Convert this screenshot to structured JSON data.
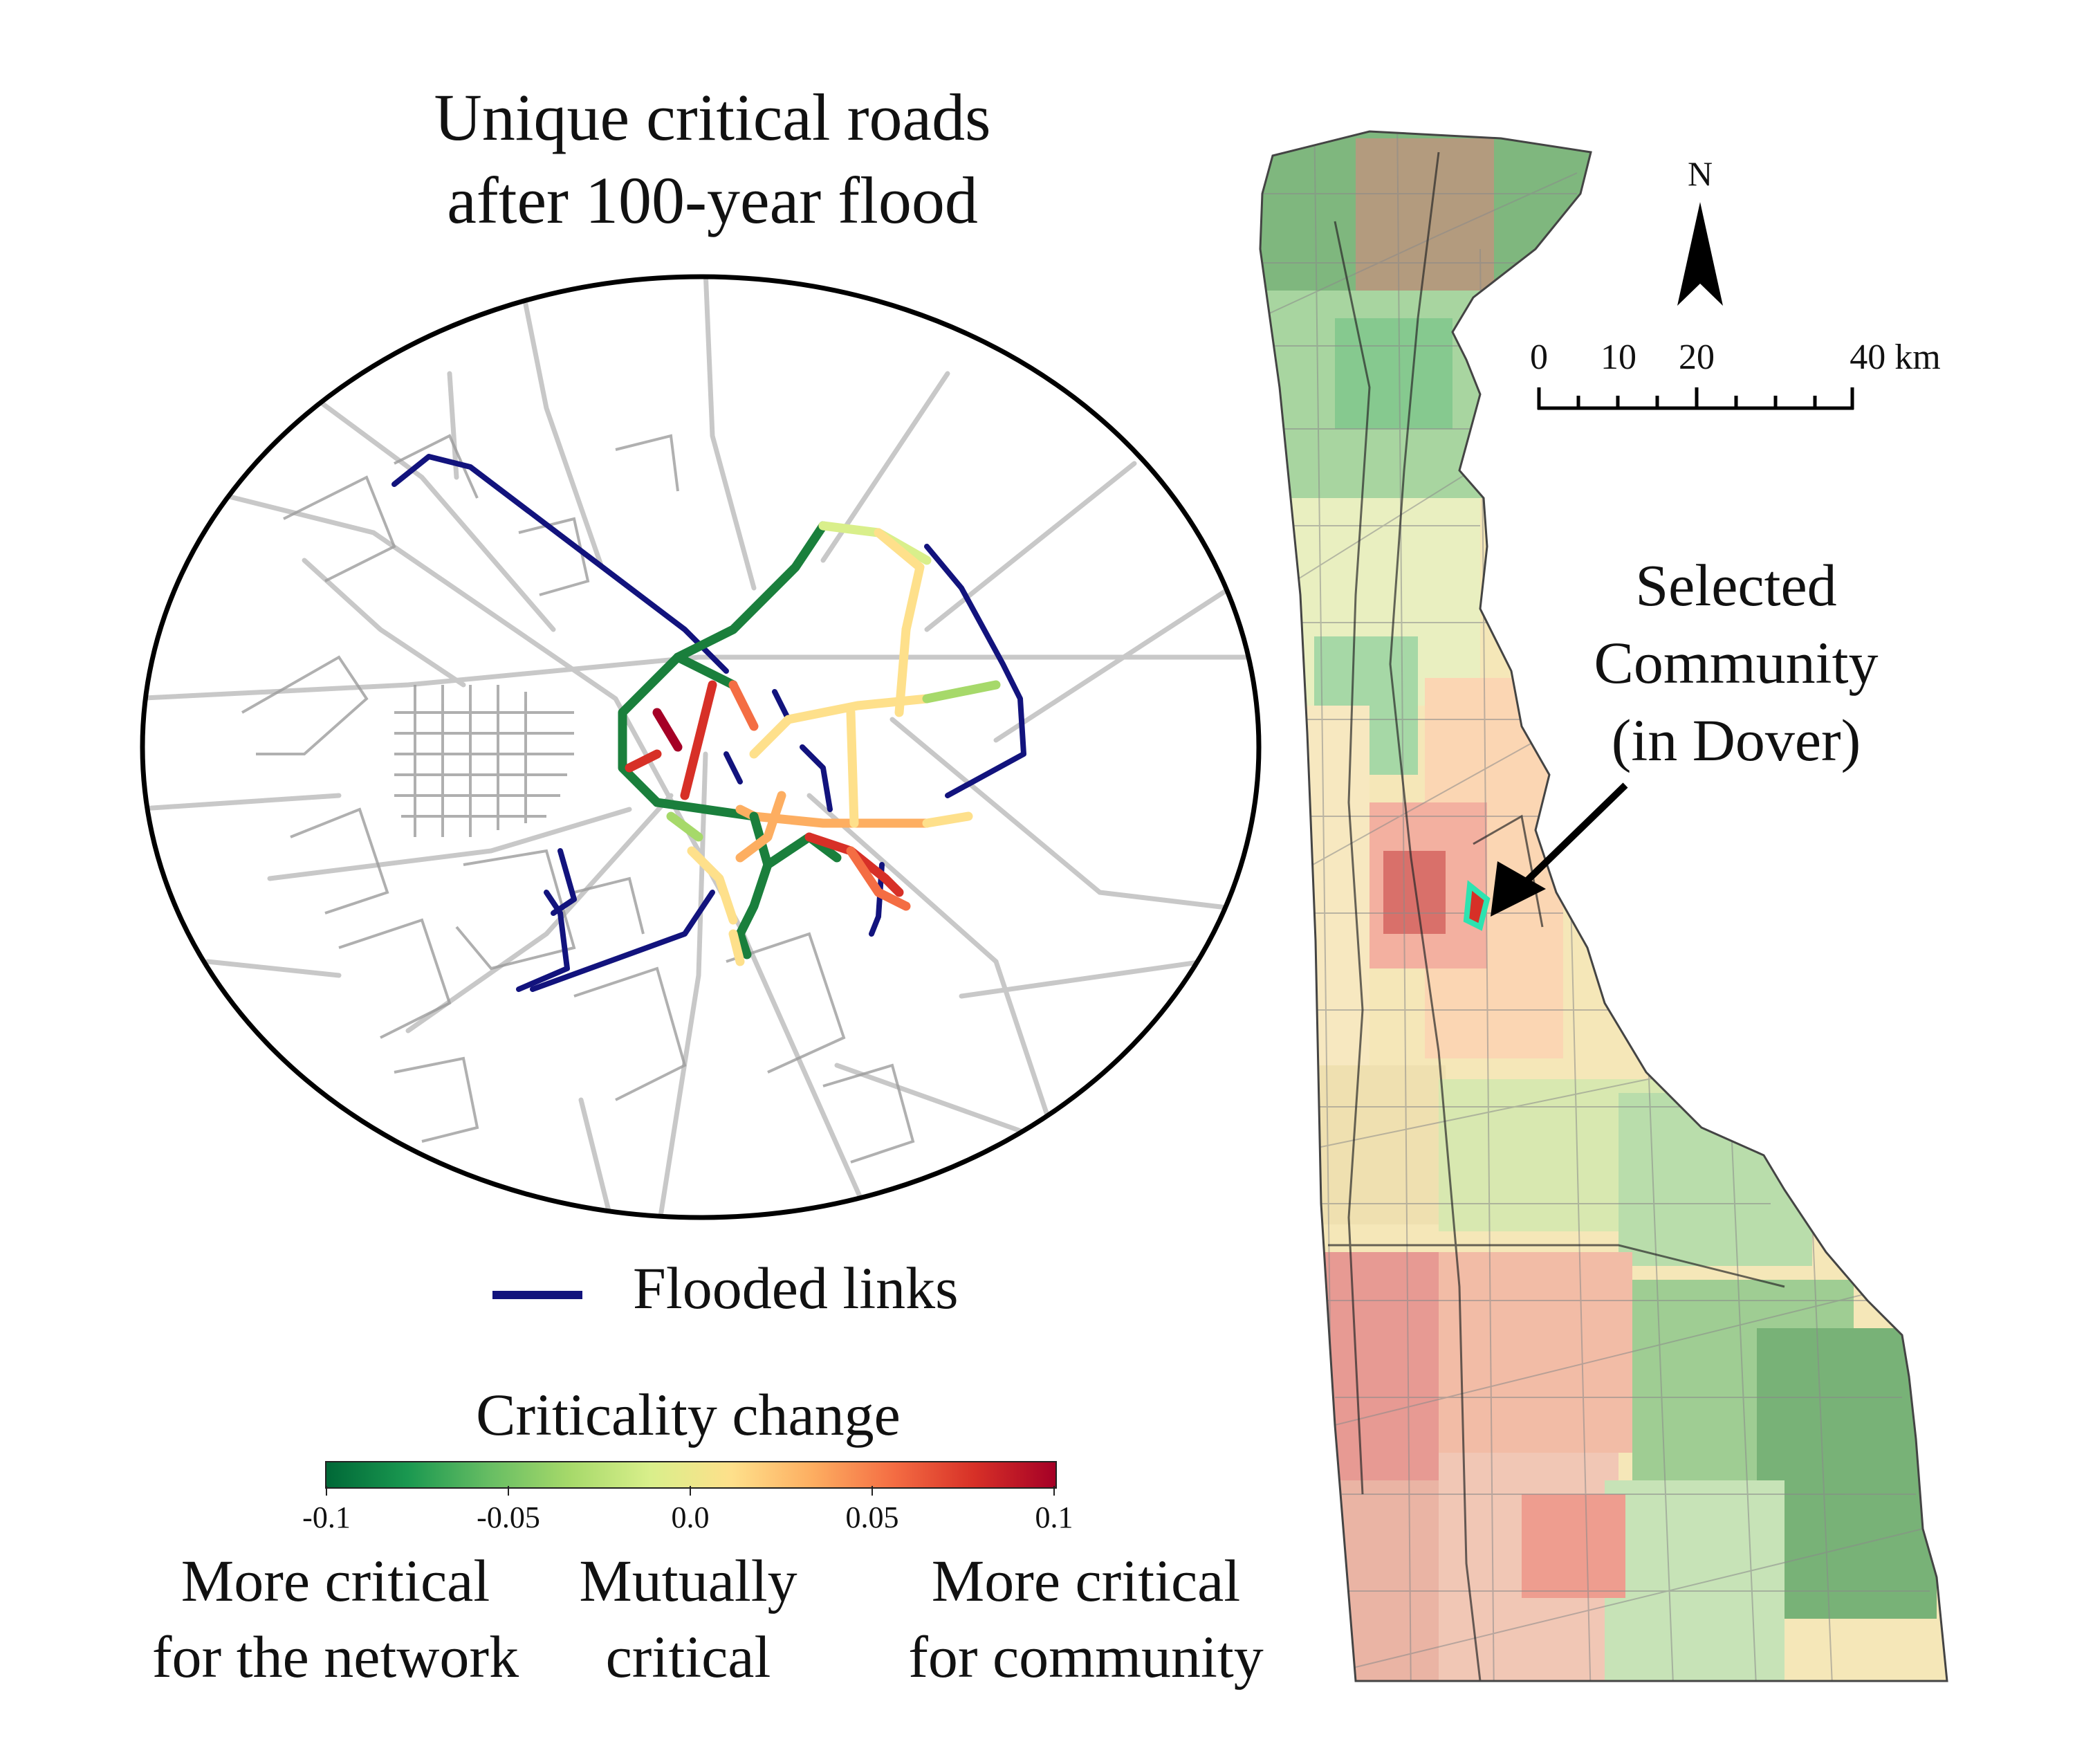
{
  "title": {
    "line1": "Unique critical roads",
    "line2": "after 100-year flood"
  },
  "legend": {
    "flooded_label": "Flooded links",
    "flooded_color": "#12137d"
  },
  "colorbar": {
    "title": "Criticality change",
    "min": -0.1,
    "max": 0.1,
    "ticks": [
      "-0.1",
      "-0.05",
      "0.0",
      "0.05",
      "0.1"
    ],
    "colors": [
      "#006837",
      "#1a9850",
      "#66bd63",
      "#a6d96a",
      "#d9ef8b",
      "#fee08b",
      "#fdae61",
      "#f46d43",
      "#d73027",
      "#a50026"
    ]
  },
  "groups": {
    "left": {
      "line1": "More critical",
      "line2": "for the network"
    },
    "middle": {
      "line1": "Mutually",
      "line2": "critical"
    },
    "right": {
      "line1": "More critical",
      "line2": "for community"
    }
  },
  "annotation": {
    "line1": "Selected",
    "line2": "Community",
    "line3": "(in Dover)",
    "highlight_color": "#2de3b0"
  },
  "north_arrow": {
    "label": "N"
  },
  "scale_bar": {
    "labels": [
      "0",
      "10",
      "20",
      "40 km"
    ]
  }
}
